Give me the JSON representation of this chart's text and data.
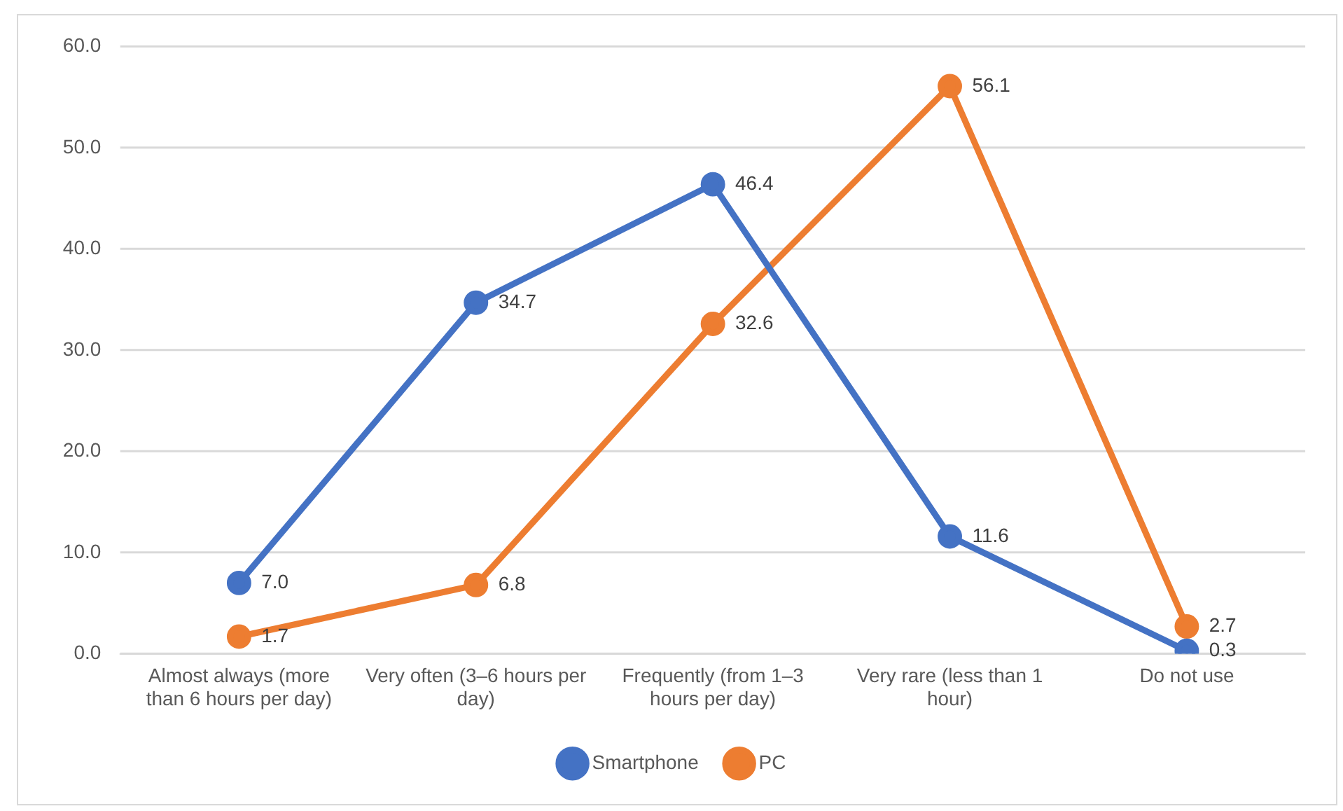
{
  "chart_data": {
    "type": "line",
    "categories": [
      "Almost always (more than 6 hours per day)",
      "Very often (3–6 hours per day)",
      "Frequently (from 1–3 hours per day)",
      "Very rare (less than 1 hour)",
      "Do not use"
    ],
    "series": [
      {
        "name": "Smartphone",
        "color": "#4472c4",
        "values": [
          7.0,
          34.7,
          46.4,
          11.6,
          0.3
        ],
        "value_labels": [
          "7.0",
          "34.7",
          "46.4",
          "11.6",
          "0.3"
        ]
      },
      {
        "name": "PC",
        "color": "#ed7d31",
        "values": [
          1.7,
          6.8,
          32.6,
          56.1,
          2.7
        ],
        "value_labels": [
          "1.7",
          "6.8",
          "32.6",
          "56.1",
          "2.7"
        ]
      }
    ],
    "ylim": [
      0,
      60
    ],
    "yticks": [
      {
        "value": 0,
        "label": "0.0"
      },
      {
        "value": 10,
        "label": "10.0"
      },
      {
        "value": 20,
        "label": "20.0"
      },
      {
        "value": 30,
        "label": "30.0"
      },
      {
        "value": 40,
        "label": "40.0"
      },
      {
        "value": 50,
        "label": "50.0"
      },
      {
        "value": 60,
        "label": "60.0"
      }
    ],
    "grid": "y",
    "legend": "bottom",
    "marker": "circle",
    "line_style": "solid"
  }
}
